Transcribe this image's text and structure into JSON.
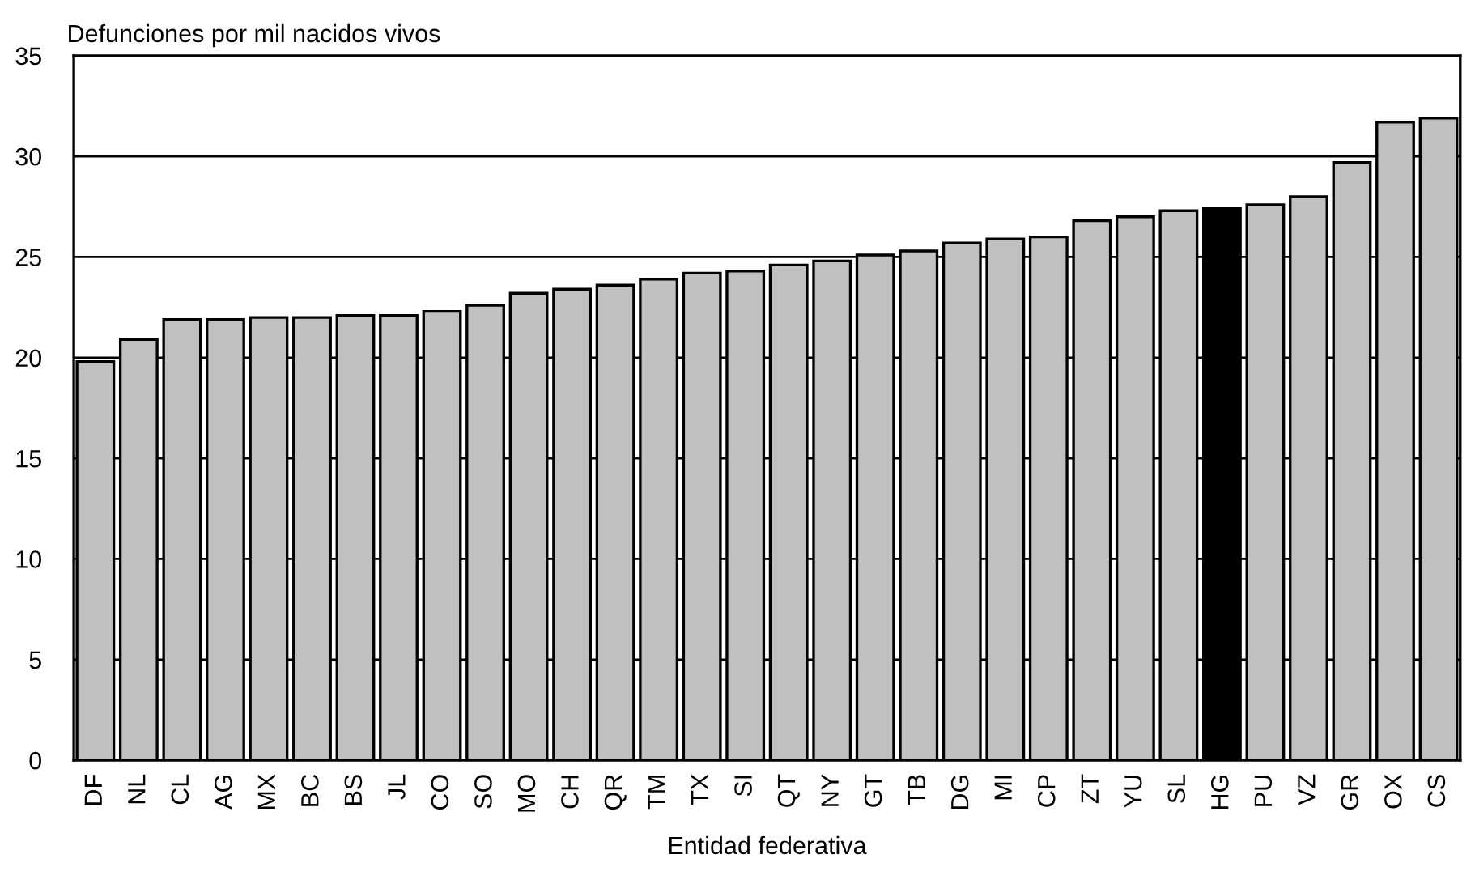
{
  "chart_data": {
    "type": "bar",
    "ylabel": "Defunciones por mil nacidos vivos",
    "xlabel": "Entidad federativa",
    "categories": [
      "DF",
      "NL",
      "CL",
      "AG",
      "MX",
      "BC",
      "BS",
      "JL",
      "CO",
      "SO",
      "MO",
      "CH",
      "QR",
      "TM",
      "TX",
      "SI",
      "QT",
      "NY",
      "GT",
      "TB",
      "DG",
      "MI",
      "CP",
      "ZT",
      "YU",
      "SL",
      "HG",
      "PU",
      "VZ",
      "GR",
      "OX",
      "CS"
    ],
    "values": [
      19.8,
      20.9,
      21.9,
      21.9,
      22.0,
      22.0,
      22.1,
      22.1,
      22.3,
      22.6,
      23.2,
      23.4,
      23.6,
      23.9,
      24.2,
      24.3,
      24.6,
      24.8,
      25.1,
      25.3,
      25.7,
      25.9,
      26.0,
      26.8,
      27.0,
      27.3,
      27.4,
      27.6,
      28.0,
      29.7,
      31.7,
      31.9
    ],
    "colors": [
      "#c0c0c0",
      "#c0c0c0",
      "#c0c0c0",
      "#c0c0c0",
      "#c0c0c0",
      "#c0c0c0",
      "#c0c0c0",
      "#c0c0c0",
      "#c0c0c0",
      "#c0c0c0",
      "#c0c0c0",
      "#c0c0c0",
      "#c0c0c0",
      "#c0c0c0",
      "#c0c0c0",
      "#c0c0c0",
      "#c0c0c0",
      "#c0c0c0",
      "#c0c0c0",
      "#c0c0c0",
      "#c0c0c0",
      "#c0c0c0",
      "#c0c0c0",
      "#c0c0c0",
      "#c0c0c0",
      "#c0c0c0",
      "#000000",
      "#c0c0c0",
      "#c0c0c0",
      "#c0c0c0",
      "#c0c0c0",
      "#c0c0c0"
    ],
    "ylim": [
      0,
      35
    ],
    "yticks": [
      0,
      5,
      10,
      15,
      20,
      25,
      30,
      35
    ],
    "grid": "y",
    "legend": false
  }
}
